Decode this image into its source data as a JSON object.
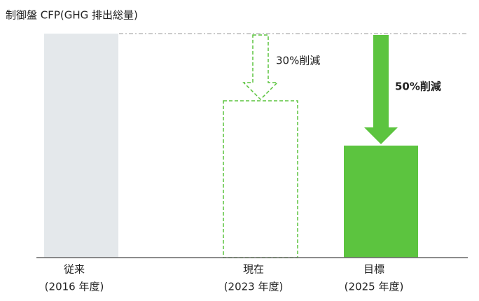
{
  "chart_data": {
    "type": "bar",
    "title": "制御盤 CFP(GHG 排出総量)",
    "categories": [
      "従来",
      "現在",
      "目標"
    ],
    "periods": [
      "(2016 年度)",
      "(2023 年度)",
      "(2025 年度)"
    ],
    "values": [
      100,
      70,
      50
    ],
    "colors": [
      "#e4e8eb",
      "#5cc43f",
      "#5cc43f"
    ],
    "styles": [
      "solid",
      "dashed",
      "solid"
    ],
    "annotations": [
      "30%削減",
      "50%削減"
    ]
  }
}
